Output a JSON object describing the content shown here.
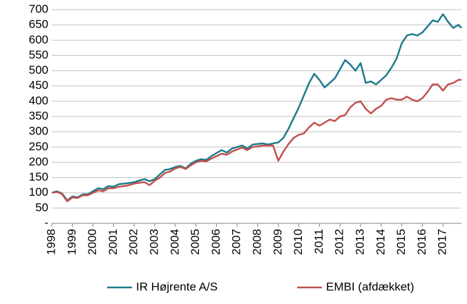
{
  "chart_data": {
    "type": "line",
    "x": [
      1998,
      1998.25,
      1998.5,
      1998.75,
      1999,
      1999.25,
      1999.5,
      1999.75,
      2000,
      2000.25,
      2000.5,
      2000.75,
      2001,
      2001.25,
      2001.5,
      2001.75,
      2002,
      2002.25,
      2002.5,
      2002.75,
      2003,
      2003.25,
      2003.5,
      2003.75,
      2004,
      2004.25,
      2004.5,
      2004.75,
      2005,
      2005.25,
      2005.5,
      2005.75,
      2006,
      2006.25,
      2006.5,
      2006.75,
      2007,
      2007.25,
      2007.5,
      2007.75,
      2008,
      2008.25,
      2008.5,
      2008.75,
      2009,
      2009.25,
      2009.5,
      2009.75,
      2010,
      2010.25,
      2010.5,
      2010.75,
      2011,
      2011.25,
      2011.5,
      2011.75,
      2012,
      2012.25,
      2012.5,
      2012.75,
      2013,
      2013.25,
      2013.5,
      2013.75,
      2014,
      2014.25,
      2014.5,
      2014.75,
      2015,
      2015.25,
      2015.5,
      2015.75,
      2016,
      2016.25,
      2016.5,
      2016.75,
      2017,
      2017.25,
      2017.5,
      2017.75,
      2017.9
    ],
    "series": [
      {
        "name": "IR Højrente A/S",
        "color": "#1d7a8c",
        "values": [
          100,
          105,
          98,
          75,
          88,
          85,
          95,
          95,
          105,
          115,
          112,
          122,
          120,
          128,
          130,
          132,
          135,
          140,
          145,
          138,
          145,
          160,
          175,
          178,
          185,
          188,
          180,
          195,
          205,
          210,
          208,
          220,
          230,
          240,
          232,
          245,
          250,
          255,
          245,
          258,
          260,
          262,
          258,
          262,
          265,
          280,
          310,
          345,
          380,
          420,
          460,
          490,
          470,
          445,
          460,
          475,
          505,
          535,
          520,
          500,
          525,
          460,
          465,
          455,
          470,
          485,
          510,
          540,
          590,
          615,
          620,
          615,
          625,
          645,
          665,
          660,
          685,
          660,
          640,
          650,
          640
        ]
      },
      {
        "name": "EMBI (afdækket)",
        "color": "#c0504d",
        "values": [
          100,
          103,
          96,
          72,
          85,
          83,
          92,
          92,
          100,
          108,
          105,
          115,
          115,
          120,
          122,
          125,
          130,
          133,
          135,
          125,
          140,
          150,
          165,
          170,
          180,
          185,
          178,
          190,
          200,
          205,
          203,
          212,
          220,
          228,
          225,
          235,
          242,
          248,
          240,
          250,
          252,
          255,
          255,
          255,
          205,
          235,
          260,
          280,
          290,
          295,
          315,
          330,
          320,
          330,
          340,
          335,
          350,
          355,
          380,
          395,
          400,
          375,
          360,
          375,
          385,
          405,
          410,
          405,
          405,
          415,
          405,
          400,
          410,
          430,
          455,
          455,
          435,
          455,
          460,
          470,
          470
        ]
      }
    ],
    "xlim": [
      1998,
      2017.9
    ],
    "xticks": [
      1998,
      1999,
      2000,
      2001,
      2002,
      2003,
      2004,
      2005,
      2006,
      2007,
      2008,
      2009,
      2010,
      2011,
      2012,
      2013,
      2014,
      2015,
      2016,
      2017
    ],
    "ylim": [
      0,
      700
    ],
    "yticks": [
      {
        "value": 0,
        "label": "-"
      },
      50,
      100,
      150,
      200,
      250,
      300,
      350,
      400,
      450,
      500,
      550,
      600,
      650,
      700
    ],
    "grid": true,
    "legend": "bottom"
  }
}
